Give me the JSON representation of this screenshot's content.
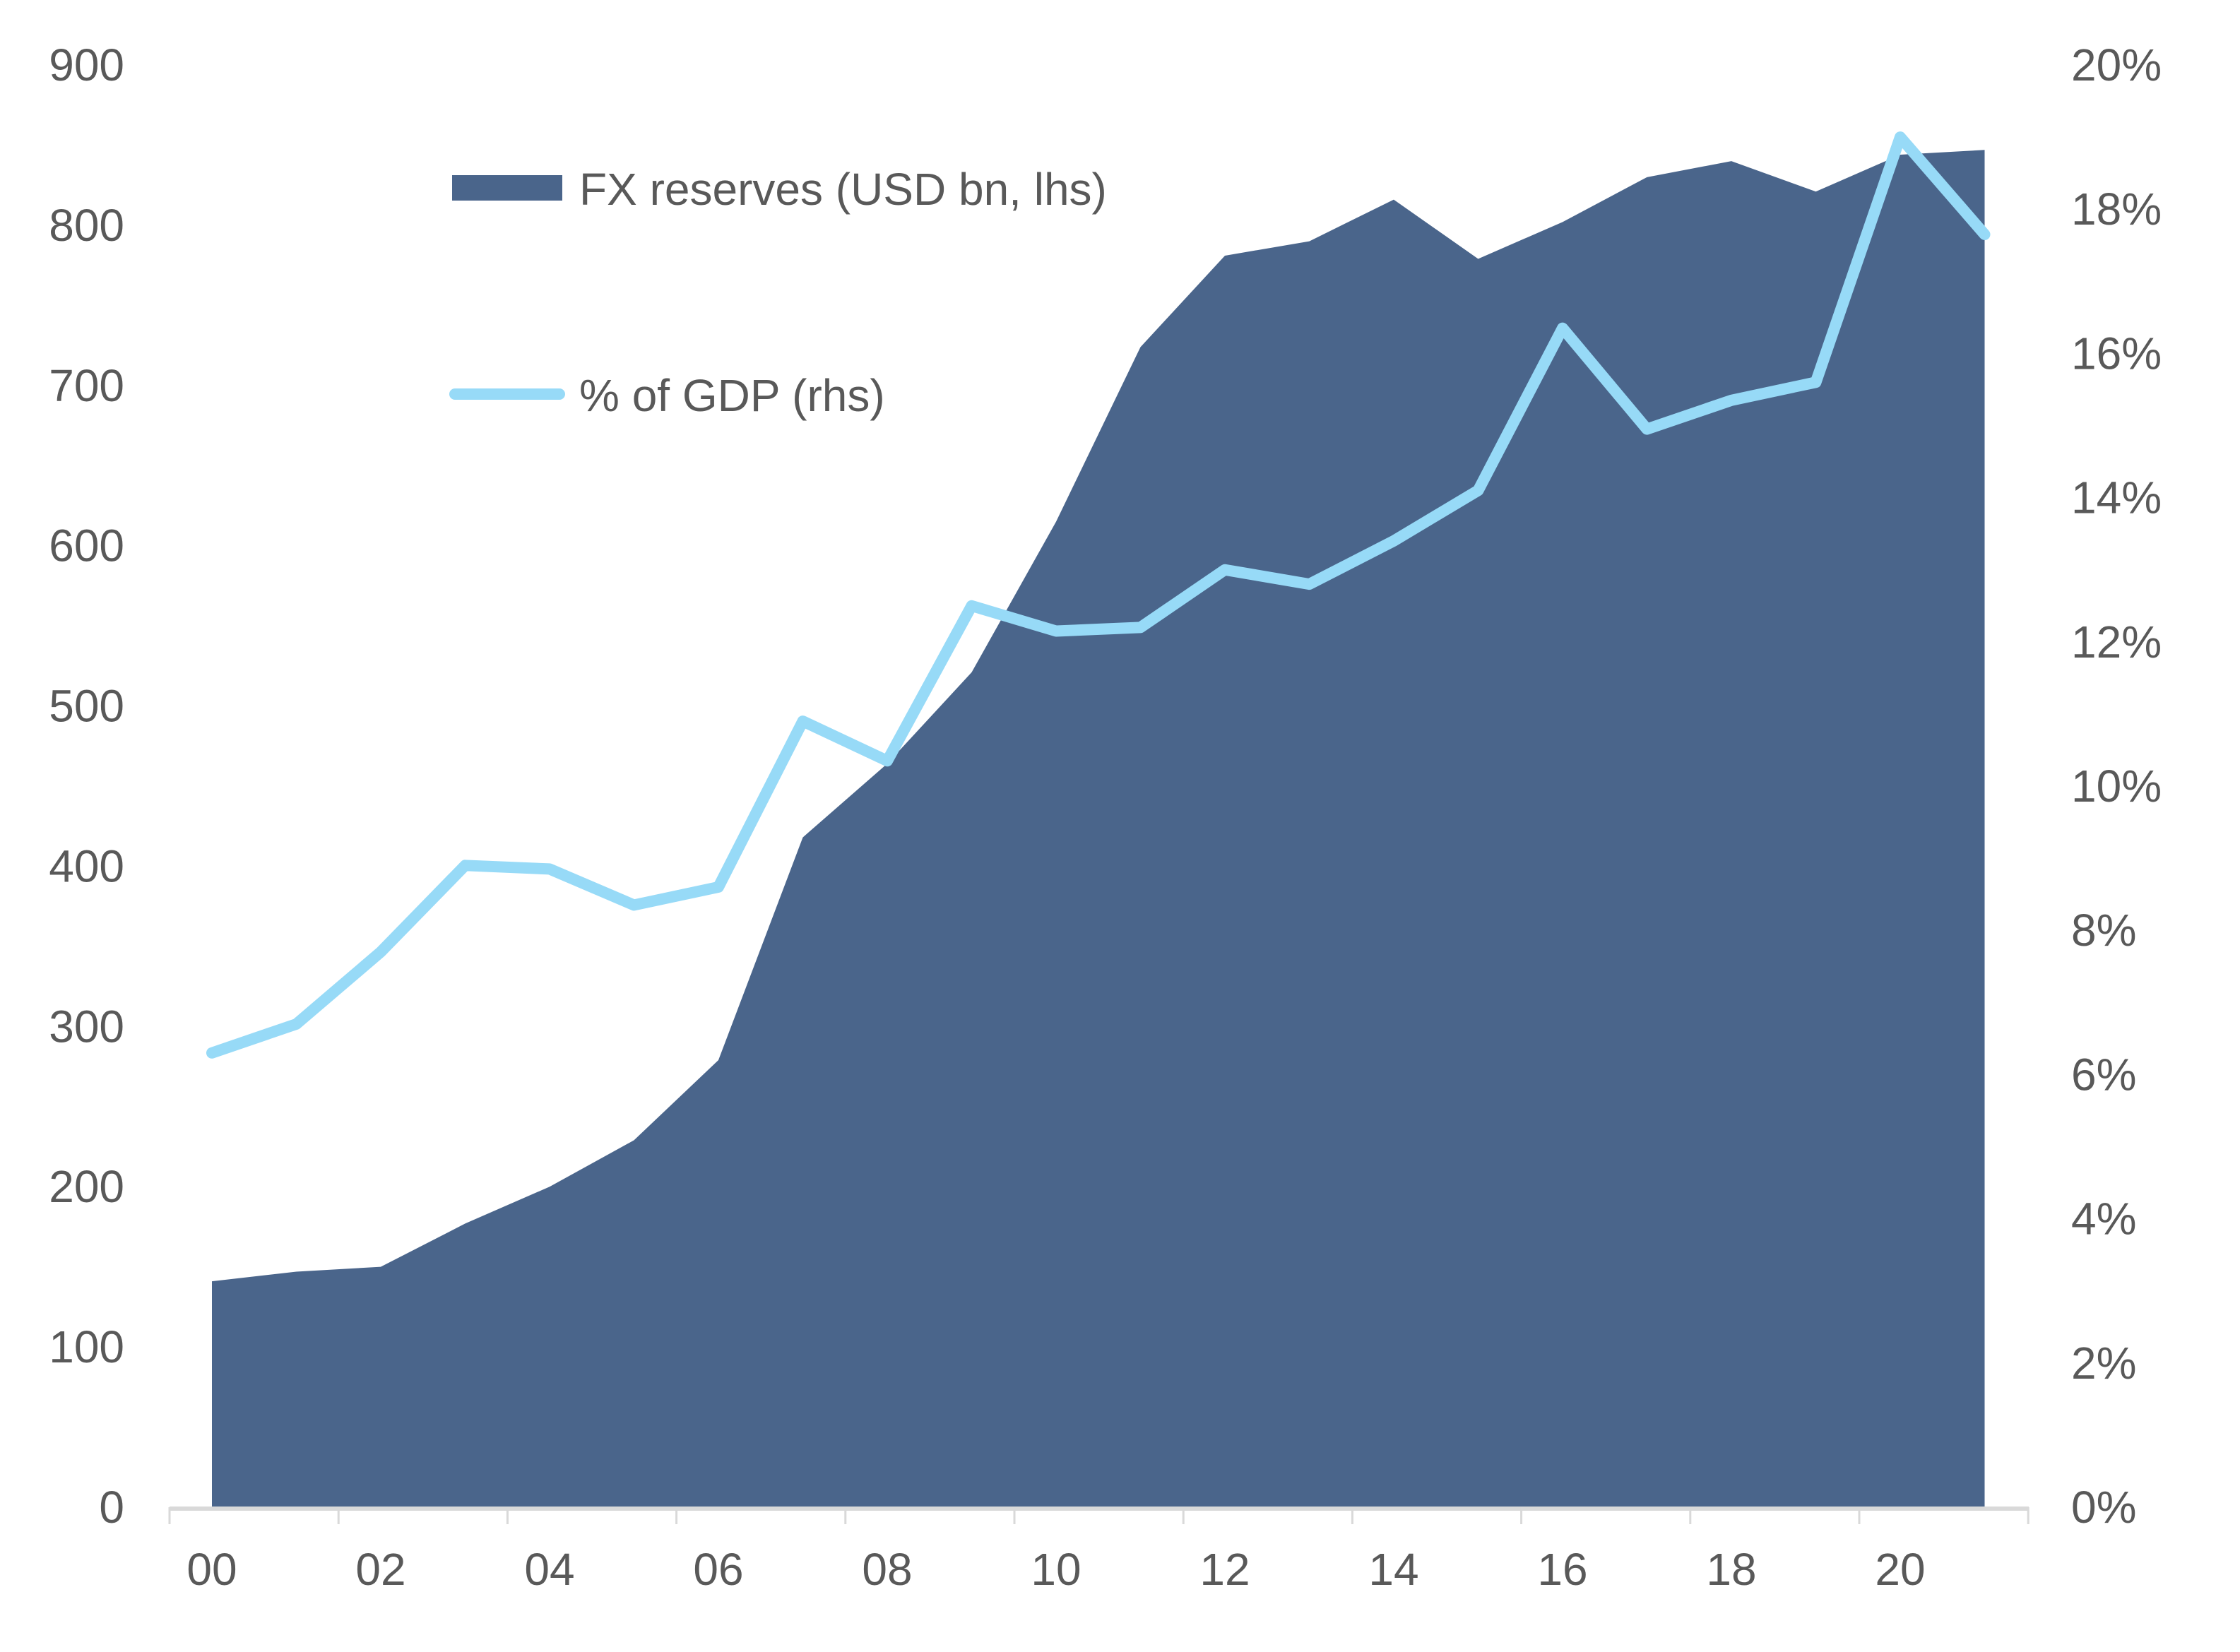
{
  "chart_data": {
    "type": "area+line",
    "x": [
      "00",
      "01",
      "02",
      "03",
      "04",
      "05",
      "06",
      "07",
      "08",
      "09",
      "10",
      "11",
      "12",
      "13",
      "14",
      "15",
      "16",
      "17",
      "18",
      "19",
      "20",
      "21"
    ],
    "x_tick_labels": [
      "00",
      "02",
      "04",
      "06",
      "08",
      "10",
      "12",
      "14",
      "16",
      "18",
      "20"
    ],
    "series": [
      {
        "name": "FX reserves (USD bn, lhs)",
        "type": "area",
        "axis": "left",
        "color": "#4A658B",
        "values": [
          141,
          147,
          150,
          177,
          200,
          229,
          279,
          418,
          464,
          521,
          615,
          724,
          781,
          790,
          816,
          779,
          802,
          830,
          840,
          821,
          844,
          847
        ]
      },
      {
        "name": "% of GDP (rhs)",
        "type": "line",
        "axis": "right",
        "color": "#97DAF7",
        "values": [
          6.3,
          6.7,
          7.7,
          8.9,
          8.85,
          8.35,
          8.6,
          10.9,
          10.35,
          12.5,
          12.15,
          12.2,
          13.0,
          12.8,
          13.4,
          14.1,
          16.35,
          14.95,
          15.35,
          15.6,
          19.0,
          17.65
        ]
      }
    ],
    "ylim_left": [
      0,
      900
    ],
    "left_ticks": [
      "0",
      "100",
      "200",
      "300",
      "400",
      "500",
      "600",
      "700",
      "800",
      "900"
    ],
    "ylim_right": [
      0,
      20
    ],
    "right_ticks": [
      "0%",
      "2%",
      "4%",
      "6%",
      "8%",
      "10%",
      "12%",
      "14%",
      "16%",
      "18%",
      "20%"
    ],
    "grid": false,
    "legend_position": "top-left-inside",
    "axis_color": "#D9D9D9"
  }
}
